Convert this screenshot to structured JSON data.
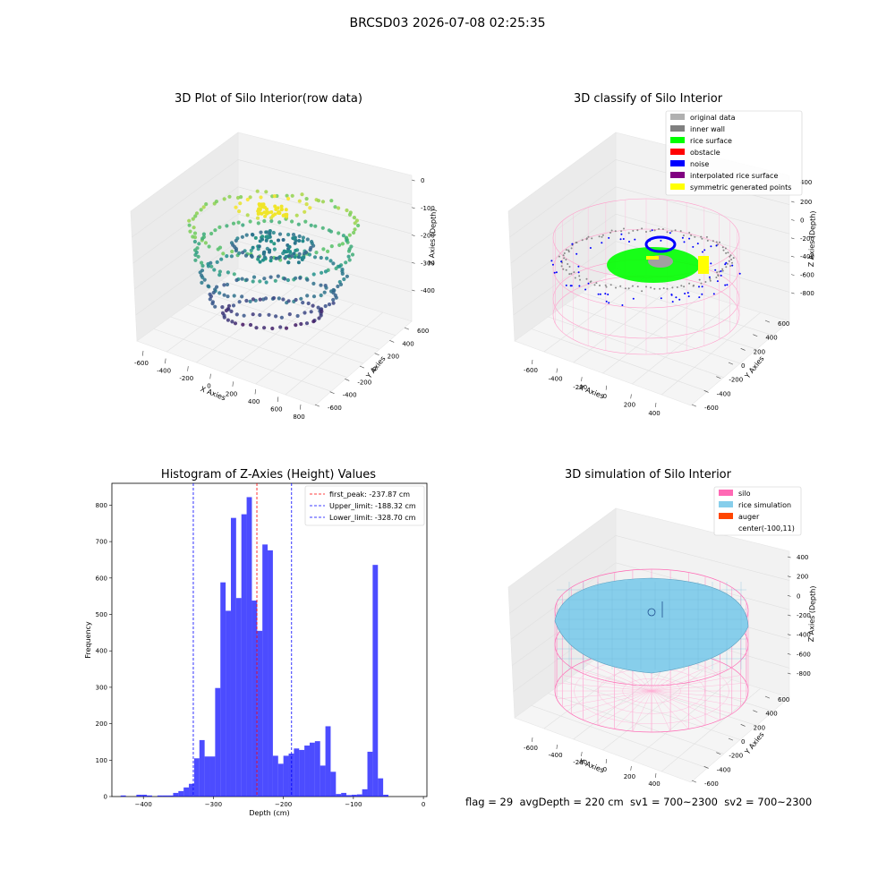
{
  "suptitle": "BRCSD03 2026-07-08 02:25:35",
  "footer": "flag = 29  avgDepth = 220 cm  sv1 = 700~2300  sv2 = 700~2300",
  "chart_data": [
    {
      "type": "scatter",
      "title": "3D Plot of Silo Interior(row data)",
      "xlabel": "X Axies",
      "ylabel": "Y Axies",
      "zlabel": "Z Axies (Depth)",
      "x_ticks": [
        "-600",
        "-400",
        "-200",
        "0",
        "200",
        "400",
        "600",
        "800"
      ],
      "y_ticks": [
        "-600",
        "-400",
        "-200",
        "0",
        "200",
        "400",
        "600"
      ],
      "z_ticks": [
        "0",
        "-100",
        "-200",
        "-300",
        "-400"
      ],
      "colormap": "viridis",
      "note_values": {
        "xlim": [
          -700,
          800
        ],
        "ylim": [
          -650,
          650
        ],
        "zlim": [
          -470,
          0
        ]
      }
    },
    {
      "type": "scatter",
      "title": "3D classify of Silo Interior",
      "xlabel": "X Axies",
      "ylabel": "Y Axies",
      "zlabel": "Z Axies (Depth)",
      "x_ticks": [
        "-600",
        "-400",
        "-200",
        "0",
        "200",
        "400"
      ],
      "y_ticks": [
        "-600",
        "-400",
        "-200",
        "0",
        "200",
        "400",
        "600"
      ],
      "z_ticks": [
        "200",
        "0",
        "-200",
        "-400",
        "-600",
        "-800"
      ],
      "z_top_tick": "400",
      "legend": [
        {
          "label": "original data",
          "color": "#b0b0b0"
        },
        {
          "label": "inner wall",
          "color": "#808080"
        },
        {
          "label": "rice surface",
          "color": "#00ff00"
        },
        {
          "label": "obstacle",
          "color": "#ff0000"
        },
        {
          "label": "noise",
          "color": "#0000ff"
        },
        {
          "label": "interpolated rice surface",
          "color": "#800080"
        },
        {
          "label": "symmetric generated points",
          "color": "#ffff00"
        }
      ],
      "legend_position": "top-right"
    },
    {
      "type": "bar",
      "title": "Histogram of Z-Axies (Height) Values",
      "xlabel": "Depth (cm)",
      "ylabel": "Frequency",
      "xlim": [
        -445,
        5
      ],
      "ylim": [
        0,
        860
      ],
      "x_ticks": [
        -400,
        -300,
        -200,
        -100,
        0
      ],
      "y_ticks": [
        0,
        100,
        200,
        300,
        400,
        500,
        600,
        700,
        800
      ],
      "bin_width": 7.5,
      "bin_start": -432.5,
      "values": [
        3,
        0,
        0,
        5,
        5,
        3,
        0,
        3,
        3,
        3,
        10,
        15,
        25,
        35,
        105,
        155,
        110,
        110,
        298,
        588,
        510,
        765,
        545,
        775,
        822,
        538,
        455,
        692,
        676,
        112,
        90,
        112,
        118,
        132,
        128,
        140,
        148,
        152,
        85,
        193,
        68,
        7,
        10,
        4,
        5,
        6,
        20,
        123,
        636,
        50,
        5
      ],
      "bar_color": "#0000ff",
      "lines": [
        {
          "label": "first_peak: -237.87 cm",
          "x": -237.87,
          "color": "#ff0000"
        },
        {
          "label": "Upper_limit: -188.32 cm",
          "x": -188.32,
          "color": "#0000ff"
        },
        {
          "label": "Lower_limit: -328.70 cm",
          "x": -328.7,
          "color": "#0000ff"
        }
      ],
      "legend_position": "top-right"
    },
    {
      "type": "surface",
      "title": "3D simulation of Silo Interior",
      "xlabel": "X Axies",
      "ylabel": "Y Axies",
      "zlabel": "Z Axies (Depth)",
      "x_ticks": [
        "-600",
        "-400",
        "-200",
        "0",
        "200",
        "400"
      ],
      "y_ticks": [
        "-600",
        "-400",
        "-200",
        "0",
        "200",
        "400",
        "600"
      ],
      "z_ticks": [
        "400",
        "200",
        "0",
        "-200",
        "-400",
        "-600",
        "-800"
      ],
      "legend": [
        {
          "label": "silo",
          "color": "#ff69b4"
        },
        {
          "label": "rice simulation",
          "color": "#87ceeb"
        },
        {
          "label": "auger",
          "color": "#ff4500"
        },
        {
          "label": "center(-100,11)",
          "color": ""
        }
      ],
      "legend_position": "top-right"
    }
  ]
}
